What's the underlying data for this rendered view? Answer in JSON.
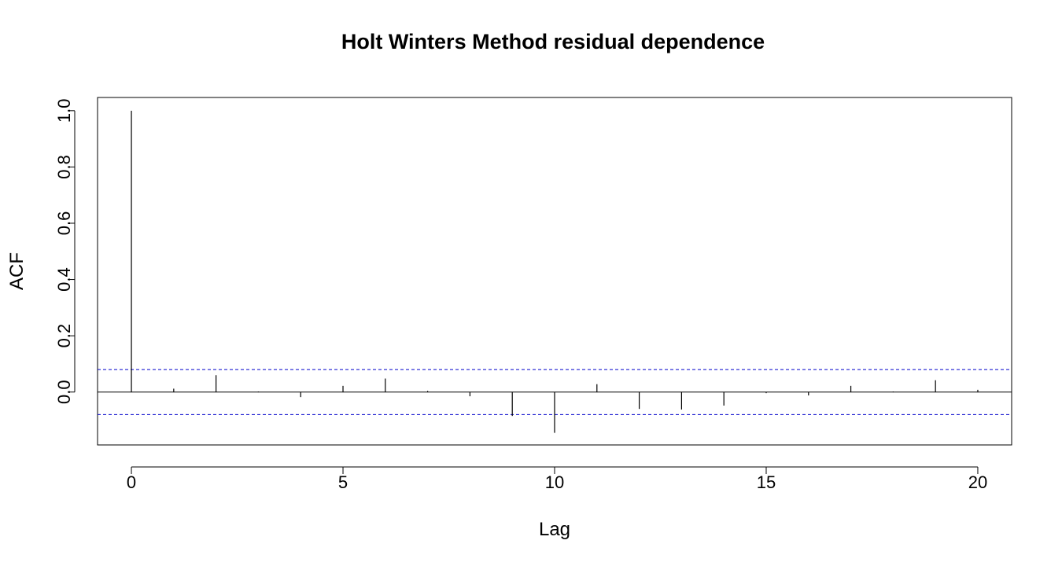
{
  "chart_data": {
    "type": "bar",
    "title": "Holt Winters Method residual dependence",
    "xlabel": "Lag",
    "ylabel": "ACF",
    "x": [
      0,
      1,
      2,
      3,
      4,
      5,
      6,
      7,
      8,
      9,
      10,
      11,
      12,
      13,
      14,
      15,
      16,
      17,
      18,
      19,
      20
    ],
    "values": [
      1.0,
      0.012,
      0.06,
      0.002,
      -0.018,
      0.022,
      0.048,
      0.004,
      -0.015,
      -0.085,
      -0.145,
      0.028,
      -0.06,
      -0.062,
      -0.048,
      -0.004,
      -0.012,
      0.022,
      0.002,
      0.042,
      0.008
    ],
    "confidence_bounds": [
      0.08,
      -0.08
    ],
    "xlim": [
      -0.8,
      20.8
    ],
    "ylim": [
      -0.188,
      1.047
    ],
    "xticks": [
      0,
      5,
      10,
      15,
      20
    ],
    "yticks": [
      0.0,
      0.2,
      0.4,
      0.6,
      0.8,
      1.0
    ],
    "xtick_labels": [
      "0",
      "5",
      "10",
      "15",
      "20"
    ],
    "ytick_labels": [
      "0.0",
      "0.2",
      "0.4",
      "0.6",
      "0.8",
      "1.0"
    ],
    "colors": {
      "bars": "#000000",
      "bounds": "#0000cc",
      "frame": "#000000"
    }
  }
}
